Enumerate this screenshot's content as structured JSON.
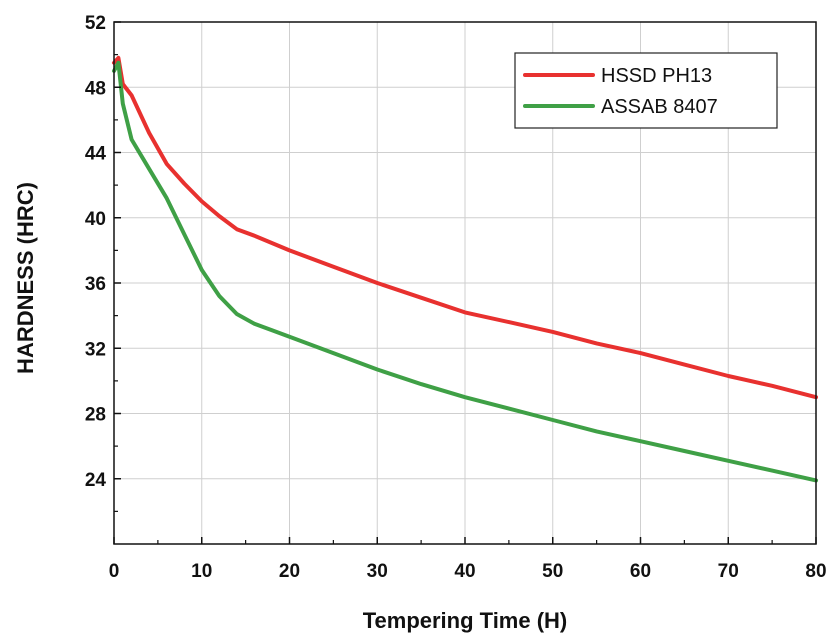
{
  "chart_data": {
    "type": "line",
    "title": "",
    "xlabel": "Tempering Time (H)",
    "ylabel": "HARDNESS (HRC)",
    "xlim": [
      0,
      80
    ],
    "ylim": [
      20,
      52
    ],
    "xticks": [
      0,
      10,
      20,
      30,
      40,
      50,
      60,
      70,
      80
    ],
    "yticks": [
      24,
      28,
      32,
      36,
      40,
      44,
      48,
      52
    ],
    "grid": true,
    "legend_position": "top-right",
    "series": [
      {
        "name": "HSSD PH13",
        "color": "#e8312f",
        "x": [
          0,
          0.5,
          1,
          2,
          4,
          6,
          8,
          10,
          12,
          14,
          16,
          20,
          25,
          30,
          35,
          40,
          45,
          50,
          55,
          60,
          65,
          70,
          75,
          80
        ],
        "y": [
          49.5,
          49.8,
          48.2,
          47.5,
          45.2,
          43.3,
          42.1,
          41.0,
          40.1,
          39.3,
          38.9,
          38.0,
          37.0,
          36.0,
          35.1,
          34.2,
          33.6,
          33.0,
          32.3,
          31.7,
          31.0,
          30.3,
          29.7,
          29.0
        ]
      },
      {
        "name": "ASSAB 8407",
        "color": "#3fa046",
        "x": [
          0,
          0.5,
          1,
          2,
          4,
          6,
          8,
          10,
          12,
          14,
          16,
          18,
          20,
          25,
          30,
          35,
          40,
          45,
          50,
          55,
          60,
          65,
          70,
          75,
          80
        ],
        "y": [
          49.0,
          49.5,
          47.0,
          44.8,
          43.0,
          41.2,
          39.0,
          36.8,
          35.2,
          34.1,
          33.5,
          33.1,
          32.7,
          31.7,
          30.7,
          29.8,
          29.0,
          28.3,
          27.6,
          26.9,
          26.3,
          25.7,
          25.1,
          24.5,
          23.9
        ]
      }
    ]
  }
}
